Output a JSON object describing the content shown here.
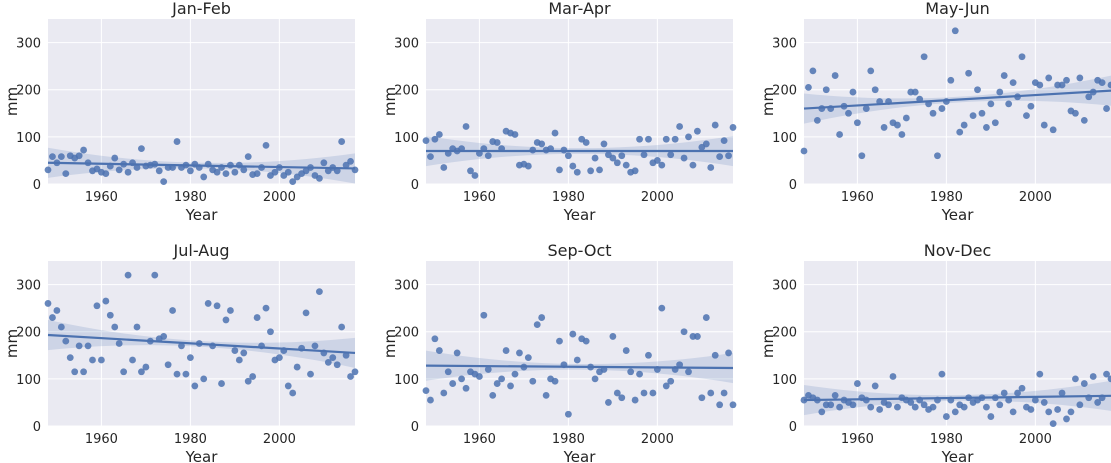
{
  "chart_data": [
    {
      "type": "scatter",
      "title": "Jan-Feb",
      "xlabel": "Year",
      "ylabel": "mm",
      "xlim": [
        1948,
        2017
      ],
      "ylim": [
        0,
        350
      ],
      "xticks": [
        "1960",
        "1980",
        "2000"
      ],
      "yticks": [
        "0",
        "100",
        "200",
        "300"
      ],
      "trend": {
        "y_start": 45,
        "y_end": 33
      },
      "x": [
        1948,
        1949,
        1950,
        1951,
        1952,
        1953,
        1954,
        1955,
        1956,
        1957,
        1958,
        1959,
        1960,
        1961,
        1962,
        1963,
        1964,
        1965,
        1966,
        1967,
        1968,
        1969,
        1970,
        1971,
        1972,
        1973,
        1974,
        1975,
        1976,
        1977,
        1978,
        1979,
        1980,
        1981,
        1982,
        1983,
        1984,
        1985,
        1986,
        1987,
        1988,
        1989,
        1990,
        1991,
        1992,
        1993,
        1994,
        1995,
        1996,
        1997,
        1998,
        1999,
        2000,
        2001,
        2002,
        2003,
        2004,
        2005,
        2006,
        2007,
        2008,
        2009,
        2010,
        2011,
        2012,
        2013,
        2014,
        2015,
        2016,
        2017
      ],
      "y": [
        30,
        58,
        45,
        58,
        22,
        60,
        55,
        60,
        72,
        45,
        28,
        32,
        25,
        22,
        38,
        55,
        30,
        42,
        25,
        45,
        35,
        75,
        38,
        40,
        42,
        28,
        5,
        35,
        35,
        90,
        35,
        40,
        28,
        42,
        35,
        15,
        42,
        30,
        25,
        35,
        22,
        40,
        25,
        40,
        30,
        58,
        20,
        22,
        35,
        82,
        18,
        25,
        35,
        18,
        25,
        5,
        15,
        22,
        28,
        35,
        18,
        12,
        45,
        28,
        35,
        28,
        90,
        40,
        48,
        30
      ]
    },
    {
      "type": "scatter",
      "title": "Mar-Apr",
      "xlabel": "Year",
      "ylabel": "mm",
      "xlim": [
        1948,
        2017
      ],
      "ylim": [
        0,
        350
      ],
      "xticks": [
        "1960",
        "1980",
        "2000"
      ],
      "yticks": [
        "0",
        "100",
        "200",
        "300"
      ],
      "trend": {
        "y_start": 70,
        "y_end": 70
      },
      "x": [
        1948,
        1949,
        1950,
        1951,
        1952,
        1953,
        1954,
        1955,
        1956,
        1957,
        1958,
        1959,
        1960,
        1961,
        1962,
        1963,
        1964,
        1965,
        1966,
        1967,
        1968,
        1969,
        1970,
        1971,
        1972,
        1973,
        1974,
        1975,
        1976,
        1977,
        1978,
        1979,
        1980,
        1981,
        1982,
        1983,
        1984,
        1985,
        1986,
        1987,
        1988,
        1989,
        1990,
        1991,
        1992,
        1993,
        1994,
        1995,
        1996,
        1997,
        1998,
        1999,
        2000,
        2001,
        2002,
        2003,
        2004,
        2005,
        2006,
        2007,
        2008,
        2009,
        2010,
        2011,
        2012,
        2013,
        2014,
        2015,
        2016,
        2017
      ],
      "y": [
        92,
        58,
        95,
        105,
        35,
        65,
        75,
        70,
        75,
        122,
        28,
        18,
        65,
        75,
        60,
        90,
        88,
        75,
        112,
        108,
        105,
        40,
        42,
        38,
        72,
        88,
        85,
        72,
        75,
        108,
        30,
        72,
        60,
        38,
        25,
        95,
        88,
        28,
        55,
        30,
        85,
        62,
        55,
        45,
        60,
        40,
        25,
        28,
        95,
        62,
        95,
        45,
        50,
        40,
        95,
        62,
        95,
        122,
        55,
        100,
        40,
        112,
        78,
        85,
        35,
        125,
        58,
        92,
        60,
        120
      ]
    },
    {
      "type": "scatter",
      "title": "May-Jun",
      "xlabel": "Year",
      "ylabel": "mm",
      "xlim": [
        1948,
        2017
      ],
      "ylim": [
        0,
        350
      ],
      "xticks": [
        "1960",
        "1980",
        "2000"
      ],
      "yticks": [
        "0",
        "100",
        "200",
        "300"
      ],
      "trend": {
        "y_start": 160,
        "y_end": 198
      },
      "x": [
        1948,
        1949,
        1950,
        1951,
        1952,
        1953,
        1954,
        1955,
        1956,
        1957,
        1958,
        1959,
        1960,
        1961,
        1962,
        1963,
        1964,
        1965,
        1966,
        1967,
        1968,
        1969,
        1970,
        1971,
        1972,
        1973,
        1974,
        1975,
        1976,
        1977,
        1978,
        1979,
        1980,
        1981,
        1982,
        1983,
        1984,
        1985,
        1986,
        1987,
        1988,
        1989,
        1990,
        1991,
        1992,
        1993,
        1994,
        1995,
        1996,
        1997,
        1998,
        1999,
        2000,
        2001,
        2002,
        2003,
        2004,
        2005,
        2006,
        2007,
        2008,
        2009,
        2010,
        2011,
        2012,
        2013,
        2014,
        2015,
        2016,
        2017
      ],
      "y": [
        70,
        205,
        240,
        135,
        160,
        200,
        160,
        230,
        105,
        165,
        150,
        195,
        130,
        60,
        160,
        240,
        200,
        175,
        120,
        175,
        130,
        125,
        105,
        140,
        195,
        195,
        180,
        270,
        170,
        150,
        60,
        160,
        175,
        220,
        325,
        110,
        125,
        235,
        145,
        200,
        150,
        120,
        170,
        130,
        195,
        230,
        170,
        215,
        185,
        270,
        145,
        165,
        215,
        210,
        125,
        225,
        115,
        210,
        210,
        220,
        155,
        150,
        225,
        135,
        185,
        195,
        220,
        215,
        160,
        210
      ]
    },
    {
      "type": "scatter",
      "title": "Jul-Aug",
      "xlabel": "Year",
      "ylabel": "mm",
      "xlim": [
        1948,
        2017
      ],
      "ylim": [
        0,
        350
      ],
      "xticks": [
        "1960",
        "1980",
        "2000"
      ],
      "yticks": [
        "0",
        "100",
        "200",
        "300"
      ],
      "trend": {
        "y_start": 193,
        "y_end": 155
      },
      "x": [
        1948,
        1949,
        1950,
        1951,
        1952,
        1953,
        1954,
        1955,
        1956,
        1957,
        1958,
        1959,
        1960,
        1961,
        1962,
        1963,
        1964,
        1965,
        1966,
        1967,
        1968,
        1969,
        1970,
        1971,
        1972,
        1973,
        1974,
        1975,
        1976,
        1977,
        1978,
        1979,
        1980,
        1981,
        1982,
        1983,
        1984,
        1985,
        1986,
        1987,
        1988,
        1989,
        1990,
        1991,
        1992,
        1993,
        1994,
        1995,
        1996,
        1997,
        1998,
        1999,
        2000,
        2001,
        2002,
        2003,
        2004,
        2005,
        2006,
        2007,
        2008,
        2009,
        2010,
        2011,
        2012,
        2013,
        2014,
        2015,
        2016,
        2017
      ],
      "y": [
        260,
        230,
        245,
        210,
        180,
        145,
        115,
        170,
        115,
        170,
        140,
        255,
        140,
        265,
        235,
        210,
        175,
        115,
        320,
        140,
        210,
        115,
        125,
        180,
        320,
        185,
        190,
        130,
        245,
        110,
        170,
        110,
        145,
        85,
        175,
        100,
        260,
        170,
        255,
        90,
        225,
        245,
        160,
        140,
        155,
        95,
        105,
        230,
        170,
        250,
        200,
        140,
        145,
        160,
        85,
        70,
        125,
        165,
        240,
        110,
        170,
        285,
        155,
        135,
        145,
        130,
        210,
        150,
        105,
        115
      ]
    },
    {
      "type": "scatter",
      "title": "Sep-Oct",
      "xlabel": "Year",
      "ylabel": "mm",
      "xlim": [
        1948,
        2017
      ],
      "ylim": [
        0,
        350
      ],
      "xticks": [
        "1960",
        "1980",
        "2000"
      ],
      "yticks": [
        "0",
        "100",
        "200",
        "300"
      ],
      "trend": {
        "y_start": 128,
        "y_end": 123
      },
      "x": [
        1948,
        1949,
        1950,
        1951,
        1952,
        1953,
        1954,
        1955,
        1956,
        1957,
        1958,
        1959,
        1960,
        1961,
        1962,
        1963,
        1964,
        1965,
        1966,
        1967,
        1968,
        1969,
        1970,
        1971,
        1972,
        1973,
        1974,
        1975,
        1976,
        1977,
        1978,
        1979,
        1980,
        1981,
        1982,
        1983,
        1984,
        1985,
        1986,
        1987,
        1988,
        1989,
        1990,
        1991,
        1992,
        1993,
        1994,
        1995,
        1996,
        1997,
        1998,
        1999,
        2000,
        2001,
        2002,
        2003,
        2004,
        2005,
        2006,
        2007,
        2008,
        2009,
        2010,
        2011,
        2012,
        2013,
        2014,
        2015,
        2016,
        2017
      ],
      "y": [
        75,
        55,
        185,
        160,
        70,
        115,
        90,
        155,
        100,
        80,
        115,
        110,
        105,
        235,
        120,
        65,
        90,
        100,
        160,
        85,
        110,
        155,
        125,
        145,
        95,
        215,
        230,
        65,
        100,
        95,
        180,
        130,
        25,
        195,
        140,
        185,
        180,
        125,
        100,
        115,
        120,
        50,
        190,
        70,
        60,
        160,
        115,
        55,
        110,
        70,
        150,
        70,
        120,
        250,
        85,
        95,
        120,
        130,
        200,
        115,
        190,
        190,
        60,
        230,
        70,
        150,
        45,
        70,
        155,
        45
      ]
    },
    {
      "type": "scatter",
      "title": "Nov-Dec",
      "xlabel": "Year",
      "ylabel": "mm",
      "xlim": [
        1948,
        2017
      ],
      "ylim": [
        0,
        350
      ],
      "xticks": [
        "1960",
        "1980",
        "2000"
      ],
      "yticks": [
        "0",
        "100",
        "200",
        "300"
      ],
      "trend": {
        "y_start": 55,
        "y_end": 64
      },
      "x": [
        1948,
        1949,
        1950,
        1951,
        1952,
        1953,
        1954,
        1955,
        1956,
        1957,
        1958,
        1959,
        1960,
        1961,
        1962,
        1963,
        1964,
        1965,
        1966,
        1967,
        1968,
        1969,
        1970,
        1971,
        1972,
        1973,
        1974,
        1975,
        1976,
        1977,
        1978,
        1979,
        1980,
        1981,
        1982,
        1983,
        1984,
        1985,
        1986,
        1987,
        1988,
        1989,
        1990,
        1991,
        1992,
        1993,
        1994,
        1995,
        1996,
        1997,
        1998,
        1999,
        2000,
        2001,
        2002,
        2003,
        2004,
        2005,
        2006,
        2007,
        2008,
        2009,
        2010,
        2011,
        2012,
        2013,
        2014,
        2015,
        2016,
        2017
      ],
      "y": [
        55,
        65,
        60,
        55,
        30,
        45,
        45,
        65,
        40,
        55,
        50,
        45,
        90,
        60,
        55,
        40,
        85,
        35,
        50,
        45,
        105,
        40,
        60,
        55,
        50,
        40,
        55,
        45,
        35,
        40,
        55,
        110,
        20,
        55,
        30,
        45,
        40,
        60,
        50,
        55,
        60,
        40,
        20,
        60,
        45,
        70,
        55,
        30,
        70,
        80,
        40,
        35,
        55,
        110,
        50,
        30,
        5,
        35,
        70,
        15,
        30,
        100,
        45,
        90,
        60,
        105,
        50,
        60,
        110,
        100
      ]
    }
  ]
}
